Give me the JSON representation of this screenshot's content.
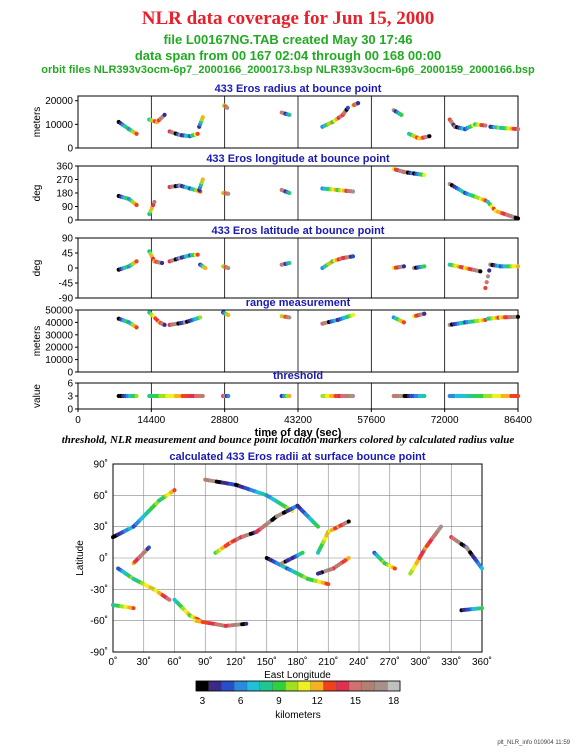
{
  "header": {
    "title": "NLR data coverage for Jun 15, 2000",
    "file_line": "file L00167NG.TAB created May 30 17:46",
    "span_line": "data span from 00 167 02:04 through 00 168 00:00",
    "orbit_line": "orbit files NLR393v3ocm-6p7_2000166_2000173.bsp NLR393v3ocm-6p6_2000159_2000166.bsp"
  },
  "caption": "threshold, NLR measurement and bounce point location markers colored by calculated radius value",
  "footer": "plt_NLR_info 010904 11:59",
  "colors": {
    "title": "#e8202a",
    "subtitle": "#22aa22",
    "panel_title": "#1a1ab0"
  },
  "colorbar": {
    "label": "kilometers",
    "ticks": [
      "3",
      "6",
      "9",
      "12",
      "15",
      "18"
    ],
    "stops": [
      "#000000",
      "#3a2a8a",
      "#2a4ec8",
      "#2a8ae0",
      "#20c0d8",
      "#20c890",
      "#30d040",
      "#a0e020",
      "#f0f020",
      "#f8b020",
      "#f04020",
      "#e03050",
      "#d07070",
      "#b08070",
      "#a89088",
      "#c0c0c0"
    ]
  },
  "chart_data": [
    {
      "type": "scatter",
      "title": "433 Eros radius at bounce point",
      "ylabel": "meters",
      "yticks": [
        "0",
        "10000",
        "20000"
      ],
      "ylim": [
        0,
        22000
      ],
      "xlim": [
        0,
        86400
      ],
      "segments": [
        {
          "x": [
            8000,
            10000,
            11500
          ],
          "y": [
            11000,
            8000,
            6000
          ]
        },
        {
          "x": [
            14000,
            15500,
            17000
          ],
          "y": [
            12000,
            11000,
            14000
          ]
        },
        {
          "x": [
            18000,
            20000,
            22000,
            23500
          ],
          "y": [
            7000,
            5500,
            5000,
            6000
          ]
        },
        {
          "x": [
            23800,
            24500
          ],
          "y": [
            9000,
            13000
          ]
        },
        {
          "x": [
            28700,
            29300
          ],
          "y": [
            18000,
            17000
          ]
        },
        {
          "x": [
            40000,
            41500
          ],
          "y": [
            15000,
            14000
          ]
        },
        {
          "x": [
            48000,
            50000,
            52000,
            53000
          ],
          "y": [
            9000,
            11000,
            14000,
            17000
          ]
        },
        {
          "x": [
            54000,
            55000
          ],
          "y": [
            18000,
            19000
          ]
        },
        {
          "x": [
            62000,
            63500
          ],
          "y": [
            16000,
            14000
          ]
        },
        {
          "x": [
            65000,
            67000,
            69000
          ],
          "y": [
            6000,
            4000,
            5000
          ]
        },
        {
          "x": [
            73000,
            74000,
            76000,
            78000,
            80000
          ],
          "y": [
            12000,
            9000,
            8000,
            10000,
            9500
          ]
        },
        {
          "x": [
            81000,
            83000,
            86400
          ],
          "y": [
            9000,
            8500,
            8000
          ]
        }
      ]
    },
    {
      "type": "scatter",
      "title": "433 Eros longitude at bounce point",
      "ylabel": "deg",
      "yticks": [
        "0",
        "90",
        "180",
        "270",
        "360"
      ],
      "ylim": [
        0,
        360
      ],
      "xlim": [
        0,
        86400
      ],
      "segments": [
        {
          "x": [
            8000,
            10000,
            11500
          ],
          "y": [
            160,
            140,
            100
          ]
        },
        {
          "x": [
            14000,
            15000
          ],
          "y": [
            40,
            120
          ]
        },
        {
          "x": [
            18000,
            20000,
            22000,
            24000
          ],
          "y": [
            220,
            230,
            210,
            190
          ]
        },
        {
          "x": [
            23800,
            24500
          ],
          "y": [
            200,
            270
          ]
        },
        {
          "x": [
            28500,
            29500
          ],
          "y": [
            180,
            175
          ]
        },
        {
          "x": [
            40000,
            41500
          ],
          "y": [
            200,
            180
          ]
        },
        {
          "x": [
            48000,
            51000,
            54000
          ],
          "y": [
            210,
            200,
            190
          ]
        },
        {
          "x": [
            62000,
            64000,
            66000,
            68000
          ],
          "y": [
            340,
            320,
            310,
            300
          ]
        },
        {
          "x": [
            73000,
            76000,
            80000
          ],
          "y": [
            240,
            180,
            130
          ]
        },
        {
          "x": [
            80500,
            82000,
            86400
          ],
          "y": [
            120,
            60,
            10
          ]
        }
      ]
    },
    {
      "type": "scatter",
      "title": "433 Eros latitude at bounce point",
      "ylabel": "deg",
      "yticks": [
        "-90",
        "-45",
        "0",
        "45",
        "90"
      ],
      "ylim": [
        -90,
        90
      ],
      "xlim": [
        0,
        86400
      ],
      "segments": [
        {
          "x": [
            8000,
            10000,
            11500
          ],
          "y": [
            -5,
            5,
            20
          ]
        },
        {
          "x": [
            14000,
            15000,
            16500
          ],
          "y": [
            50,
            20,
            15
          ]
        },
        {
          "x": [
            18000,
            20000,
            22000,
            23500
          ],
          "y": [
            20,
            30,
            38,
            40
          ]
        },
        {
          "x": [
            24000,
            25000
          ],
          "y": [
            10,
            0
          ]
        },
        {
          "x": [
            28500,
            29500
          ],
          "y": [
            5,
            0
          ]
        },
        {
          "x": [
            40000,
            41500
          ],
          "y": [
            10,
            15
          ]
        },
        {
          "x": [
            48000,
            50000,
            52000,
            54000
          ],
          "y": [
            0,
            20,
            30,
            35
          ]
        },
        {
          "x": [
            62000,
            64000
          ],
          "y": [
            0,
            5
          ]
        },
        {
          "x": [
            66000,
            68000
          ],
          "y": [
            0,
            5
          ]
        },
        {
          "x": [
            73000,
            76000,
            79000
          ],
          "y": [
            10,
            0,
            -10
          ]
        },
        {
          "x": [
            80000,
            81000,
            83000,
            86400
          ],
          "y": [
            -60,
            10,
            5,
            5
          ]
        }
      ]
    },
    {
      "type": "scatter",
      "title": "range measurement",
      "ylabel": "meters",
      "yticks": [
        "0",
        "10000",
        "20000",
        "30000",
        "40000",
        "50000"
      ],
      "ylim": [
        0,
        50000
      ],
      "xlim": [
        0,
        86400
      ],
      "segments": [
        {
          "x": [
            8000,
            10000,
            11500
          ],
          "y": [
            43000,
            40000,
            36000
          ]
        },
        {
          "x": [
            14000,
            16000,
            17000
          ],
          "y": [
            48000,
            40000,
            38000
          ]
        },
        {
          "x": [
            18000,
            21000,
            24000
          ],
          "y": [
            38000,
            40000,
            44000
          ]
        },
        {
          "x": [
            28500,
            29500
          ],
          "y": [
            48000,
            46000
          ]
        },
        {
          "x": [
            40000,
            41500
          ],
          "y": [
            45000,
            44000
          ]
        },
        {
          "x": [
            48000,
            51000,
            54000
          ],
          "y": [
            39000,
            42000,
            46000
          ]
        },
        {
          "x": [
            62000,
            64000
          ],
          "y": [
            44000,
            40000
          ]
        },
        {
          "x": [
            66000,
            68000
          ],
          "y": [
            45000,
            47000
          ]
        },
        {
          "x": [
            73000,
            76000,
            80000
          ],
          "y": [
            38000,
            40000,
            42000
          ]
        },
        {
          "x": [
            80500,
            83000,
            86400
          ],
          "y": [
            43000,
            44000,
            44500
          ]
        }
      ]
    },
    {
      "type": "scatter",
      "title": "threshold",
      "ylabel": "value",
      "yticks": [
        "0",
        "3",
        "6"
      ],
      "ylim": [
        0,
        6
      ],
      "xlim": [
        0,
        86400
      ],
      "xticks": [
        "0",
        "14400",
        "28800",
        "43200",
        "57600",
        "72000",
        "86400"
      ],
      "xlabel": "time of day (sec)",
      "segments": [
        {
          "x": [
            8000,
            11500
          ],
          "y": [
            3,
            3
          ]
        },
        {
          "x": [
            14000,
            24500
          ],
          "y": [
            3,
            3
          ]
        },
        {
          "x": [
            28500,
            29500
          ],
          "y": [
            3,
            3
          ]
        },
        {
          "x": [
            40000,
            41500
          ],
          "y": [
            3,
            3
          ]
        },
        {
          "x": [
            48000,
            54000
          ],
          "y": [
            3,
            3
          ]
        },
        {
          "x": [
            62000,
            68000
          ],
          "y": [
            3,
            3
          ]
        },
        {
          "x": [
            73000,
            86400
          ],
          "y": [
            3,
            3
          ]
        }
      ]
    },
    {
      "type": "scatter",
      "title": "calculated 433 Eros radii at surface bounce point",
      "xlabel": "East Longitude",
      "ylabel": "Latitude",
      "xlim": [
        0,
        360
      ],
      "ylim": [
        -90,
        90
      ],
      "xticks": [
        "0˚",
        "30˚",
        "60˚",
        "90˚",
        "120˚",
        "150˚",
        "180˚",
        "210˚",
        "240˚",
        "270˚",
        "300˚",
        "330˚",
        "360˚"
      ],
      "yticks": [
        "-90˚",
        "-60˚",
        "-30˚",
        "0˚",
        "30˚",
        "60˚",
        "90˚"
      ],
      "segments": [
        {
          "x": [
            0,
            20,
            45,
            60
          ],
          "y": [
            20,
            30,
            55,
            65
          ]
        },
        {
          "x": [
            60,
            75,
            85
          ],
          "y": [
            -40,
            -55,
            -60
          ]
        },
        {
          "x": [
            80,
            110,
            130
          ],
          "y": [
            -60,
            -65,
            -63
          ]
        },
        {
          "x": [
            90,
            120,
            150,
            175
          ],
          "y": [
            75,
            70,
            60,
            45
          ]
        },
        {
          "x": [
            5,
            20,
            40,
            55
          ],
          "y": [
            -10,
            -20,
            -30,
            -40
          ]
        },
        {
          "x": [
            100,
            115,
            125,
            140
          ],
          "y": [
            5,
            15,
            20,
            25
          ]
        },
        {
          "x": [
            140,
            160,
            180,
            200
          ],
          "y": [
            25,
            40,
            50,
            30
          ]
        },
        {
          "x": [
            150,
            170,
            190,
            210
          ],
          "y": [
            0,
            -10,
            -20,
            -25
          ]
        },
        {
          "x": [
            200,
            210,
            220,
            230
          ],
          "y": [
            5,
            25,
            30,
            35
          ]
        },
        {
          "x": [
            230,
            215,
            200
          ],
          "y": [
            0,
            -10,
            -15
          ]
        },
        {
          "x": [
            165,
            175,
            185
          ],
          "y": [
            -5,
            0,
            5
          ]
        },
        {
          "x": [
            255,
            265,
            275
          ],
          "y": [
            5,
            -5,
            -10
          ]
        },
        {
          "x": [
            290,
            305,
            320
          ],
          "y": [
            -15,
            10,
            30
          ]
        },
        {
          "x": [
            330,
            345,
            360
          ],
          "y": [
            20,
            10,
            -10
          ]
        },
        {
          "x": [
            340,
            360
          ],
          "y": [
            -50,
            -48
          ]
        },
        {
          "x": [
            0,
            20
          ],
          "y": [
            -45,
            -48
          ]
        },
        {
          "x": [
            20,
            30,
            35
          ],
          "y": [
            -5,
            5,
            10
          ]
        }
      ]
    }
  ]
}
